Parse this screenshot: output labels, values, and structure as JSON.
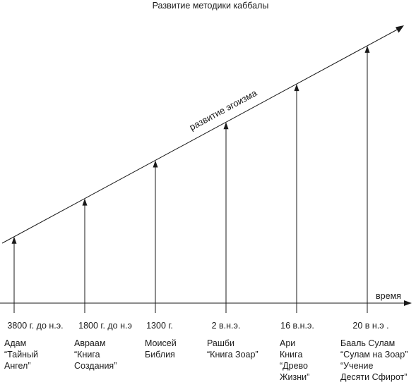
{
  "title": "Развитие методики каббалы",
  "trend_label": "развитие эгоизма",
  "axis_label": "время",
  "milestones": [
    {
      "date": "3800 г. до н.э.",
      "lines": [
        "Адам",
        "“Тайный",
        "Ангел”"
      ]
    },
    {
      "date": "1800 г. до н.э",
      "lines": [
        "Авраам",
        "“Книга",
        "Создания”"
      ]
    },
    {
      "date": "1300 г.",
      "lines": [
        "Моисей",
        "Библия"
      ]
    },
    {
      "date": "2 в.н.э.",
      "lines": [
        "Рашби",
        "“Книга Зоар”"
      ]
    },
    {
      "date": "16 в.н.э.",
      "lines": [
        "Ари",
        "Книга",
        "“Древо",
        "Жизни”"
      ]
    },
    {
      "date": "20 в н.э .",
      "lines": [
        "Бааль Сулам",
        "“Сулам на Зоар”",
        "“Учение",
        "Десяти Сфирот”"
      ]
    }
  ]
}
